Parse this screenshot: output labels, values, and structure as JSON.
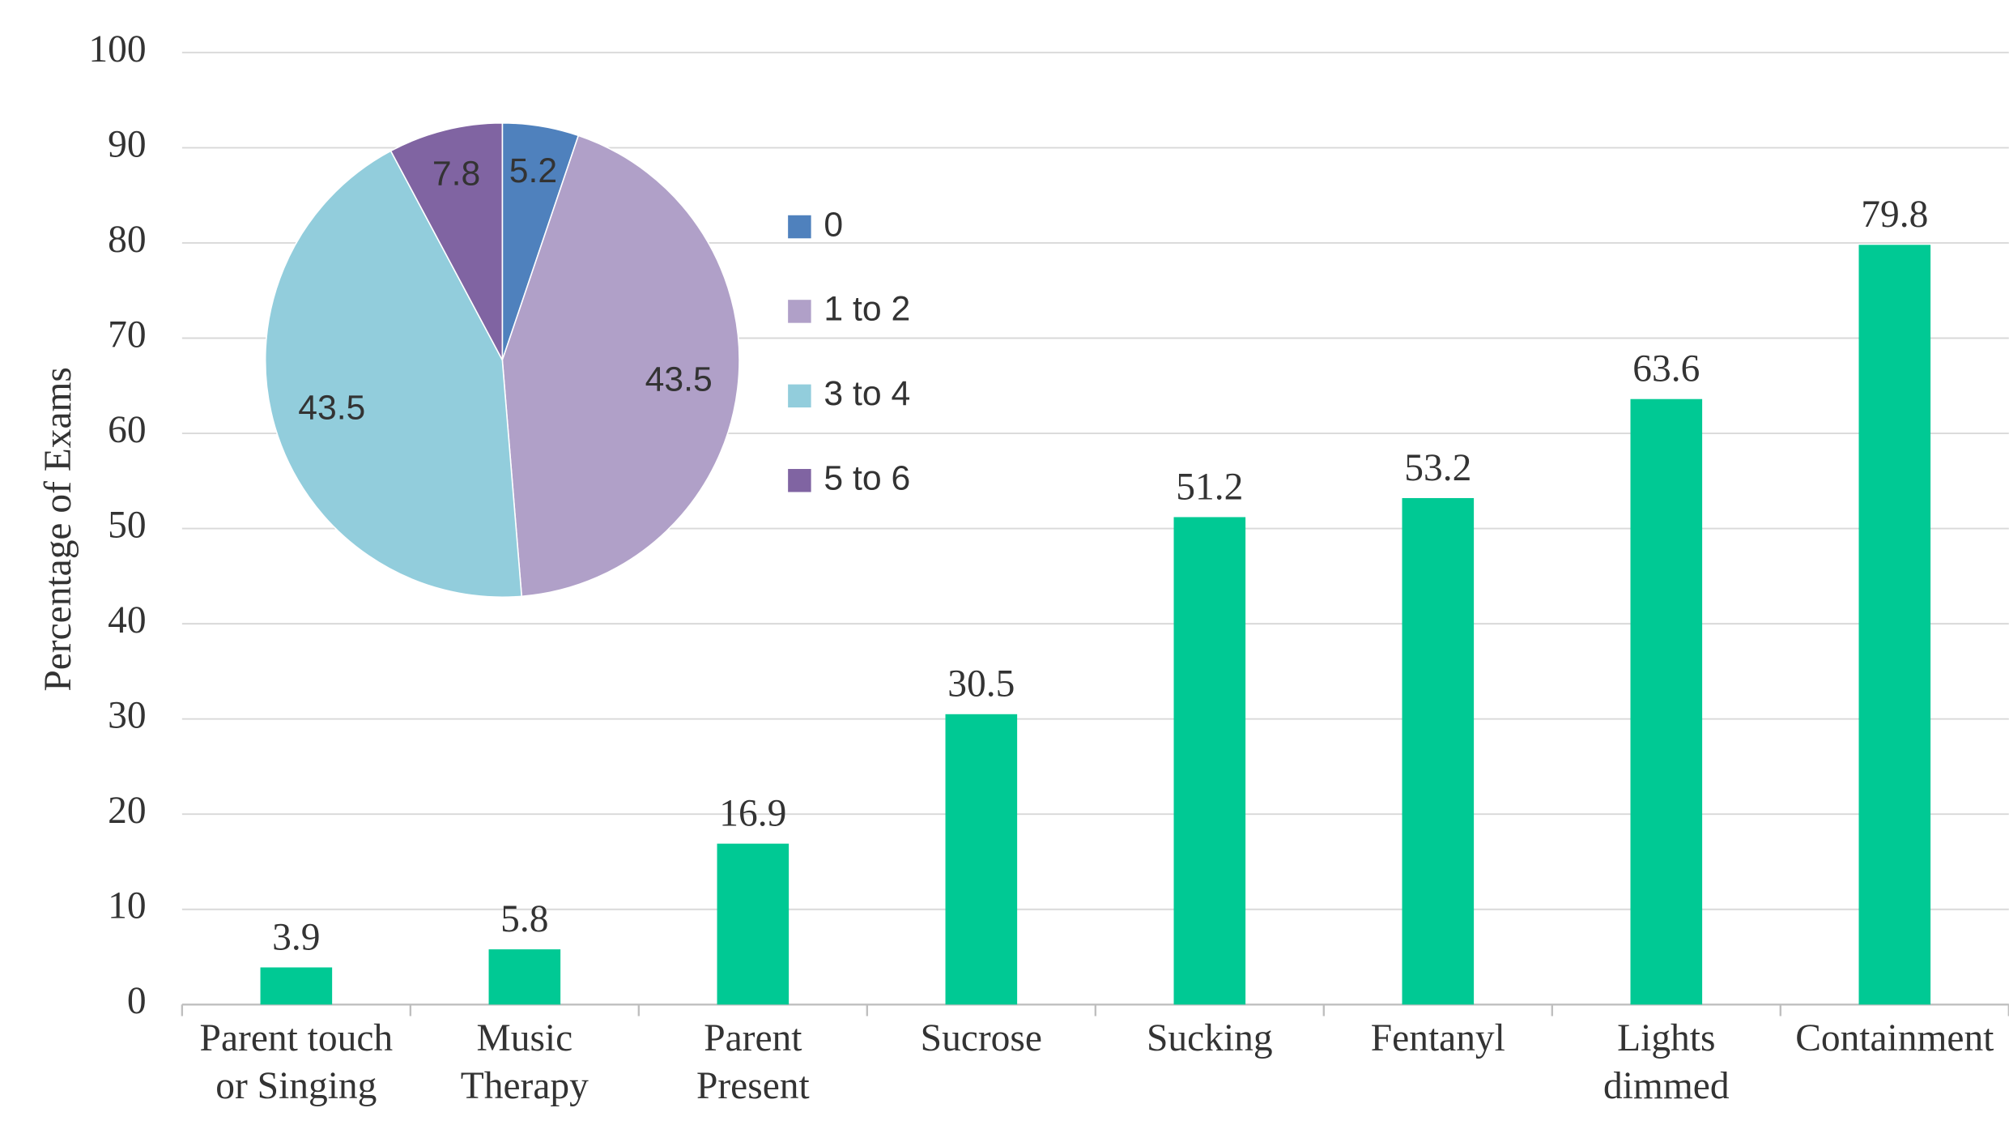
{
  "chart_data": [
    {
      "type": "bar",
      "y_axis_label": "Percentage of Exams",
      "categories": [
        "Parent touch\nor Singing",
        "Music\nTherapy",
        "Parent\nPresent",
        "Sucrose",
        "Sucking",
        "Fentanyl",
        "Lights\ndimmed",
        "Containment"
      ],
      "values": [
        3.9,
        5.8,
        16.9,
        30.5,
        51.2,
        53.2,
        63.6,
        79.8
      ],
      "color": "#00c994",
      "ylim": [
        0,
        100
      ],
      "yticks": [
        0,
        10,
        20,
        30,
        40,
        50,
        60,
        70,
        80,
        90,
        100
      ],
      "grid": true
    },
    {
      "type": "pie",
      "categories": [
        "0",
        "1 to 2",
        "3 to 4",
        "5 to 6"
      ],
      "values": [
        5.2,
        43.5,
        43.5,
        7.8
      ],
      "colors": [
        "#4f81bd",
        "#b0a0c8",
        "#92cddc",
        "#8064a2"
      ],
      "legend": "right"
    }
  ]
}
